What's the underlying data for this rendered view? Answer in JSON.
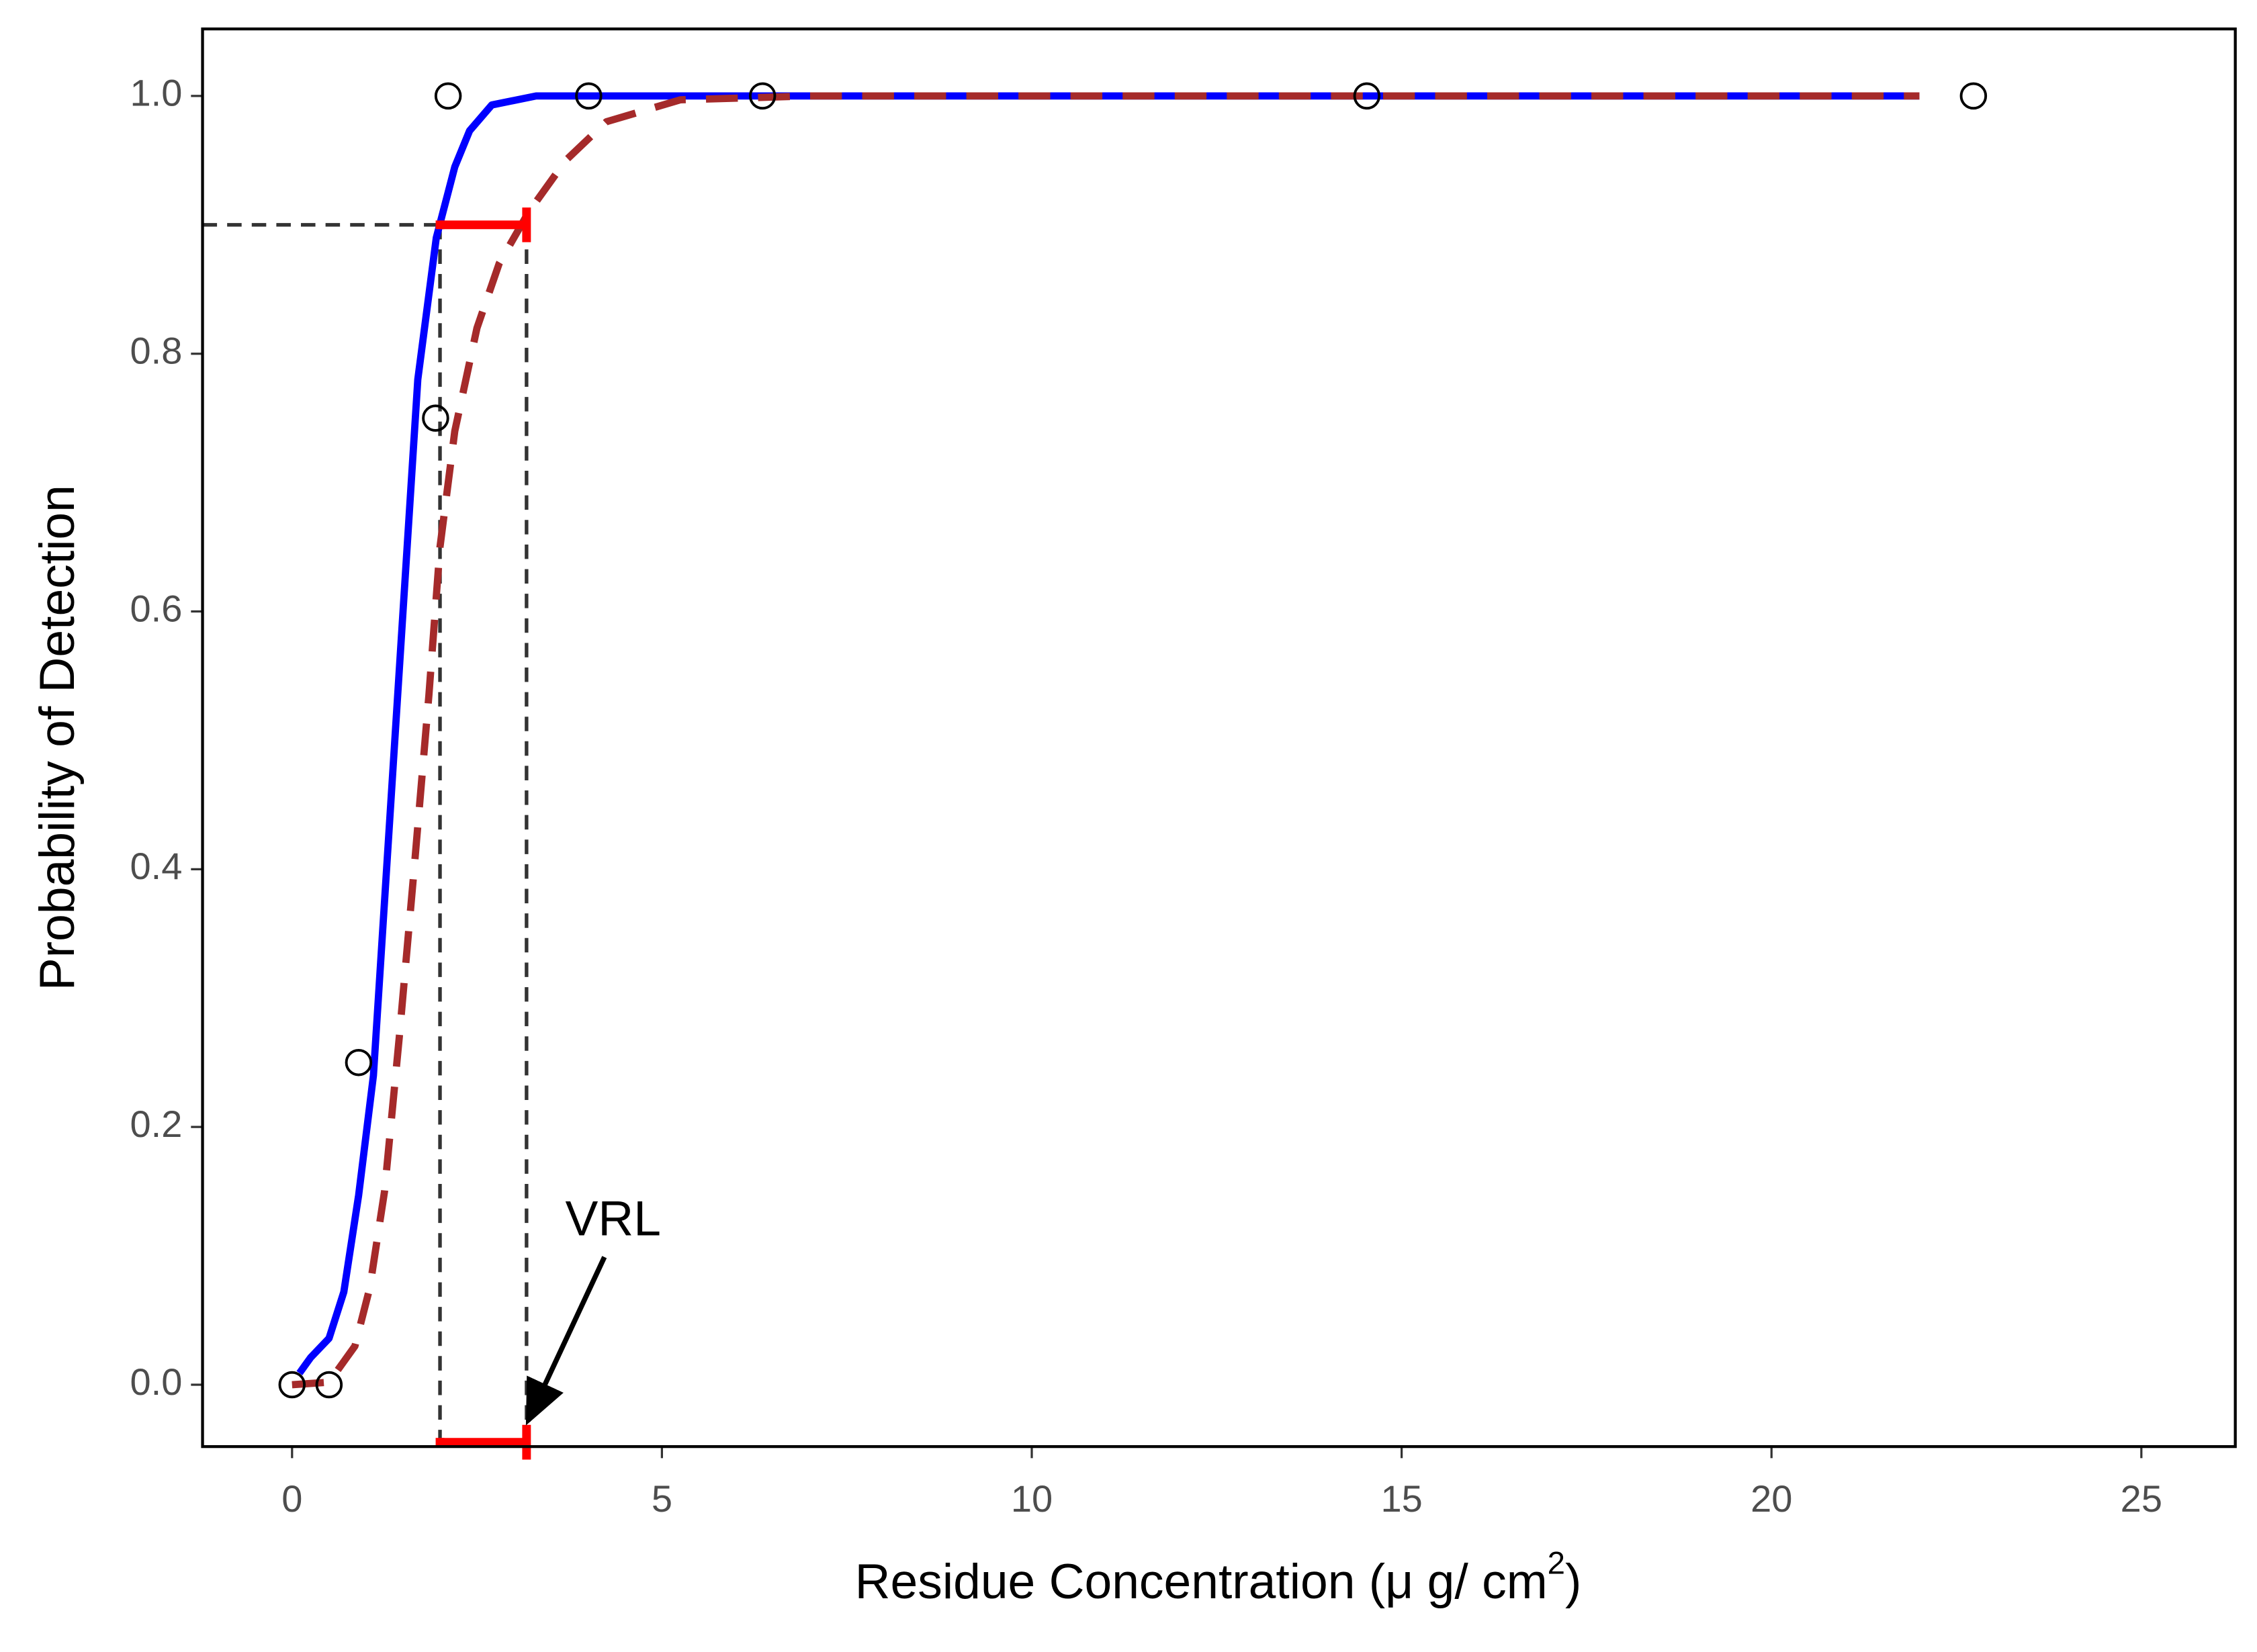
{
  "chart_data": {
    "type": "line",
    "x_label_parts": [
      "Residue Concentration (μ g/ cm",
      "2",
      ")"
    ],
    "y_label": "Probability of Detection",
    "xlim": [
      -1.21,
      26.27
    ],
    "ylim": [
      -0.048,
      1.052
    ],
    "xticks": [
      0,
      5,
      10,
      15,
      20,
      25
    ],
    "yticks": [
      {
        "value": 0,
        "label": "0.0"
      },
      0.2,
      0.4,
      0.6,
      0.8,
      {
        "value": 1,
        "label": "1.0"
      }
    ],
    "series": [
      {
        "style": "points",
        "color": "#000000",
        "x": [
          0,
          0.5,
          0.9,
          1.94,
          2.11,
          4.01,
          6.36,
          14.53,
          22.73
        ],
        "y": [
          0,
          0,
          0.25,
          0.75,
          1,
          1,
          1,
          1,
          1
        ]
      },
      {
        "style": "solid",
        "color": "#0000ff",
        "x": [
          0.1,
          0.25,
          0.5,
          0.7,
          0.9,
          1.1,
          1.3,
          1.5,
          1.7,
          1.95,
          2.2,
          2.4,
          2.7,
          3.3,
          22
        ],
        "y": [
          0.009,
          0.021,
          0.036,
          0.072,
          0.147,
          0.24,
          0.42,
          0.6,
          0.78,
          0.89,
          0.945,
          0.973,
          0.993,
          1.0,
          1.0
        ]
      },
      {
        "style": "dashed",
        "color": "#a52a2a",
        "x": [
          0,
          0.5,
          0.85,
          1.05,
          1.25,
          1.45,
          1.65,
          1.85,
          2.0,
          2.2,
          2.5,
          2.8,
          3.2,
          3.7,
          4.25,
          5.25,
          7,
          22
        ],
        "y": [
          0,
          0.002,
          0.03,
          0.075,
          0.15,
          0.27,
          0.4,
          0.535,
          0.65,
          0.74,
          0.82,
          0.87,
          0.91,
          0.95,
          0.98,
          0.997,
          1.0,
          1.0
        ]
      }
    ],
    "pod_level": 0.9,
    "interval": [
      2.0,
      3.17
    ],
    "interval_color": "#ff0000",
    "annotation": {
      "text": "VRL",
      "x": 4.34,
      "y": 0.126,
      "arrow_to": [
        3.19,
        -0.028
      ]
    }
  }
}
